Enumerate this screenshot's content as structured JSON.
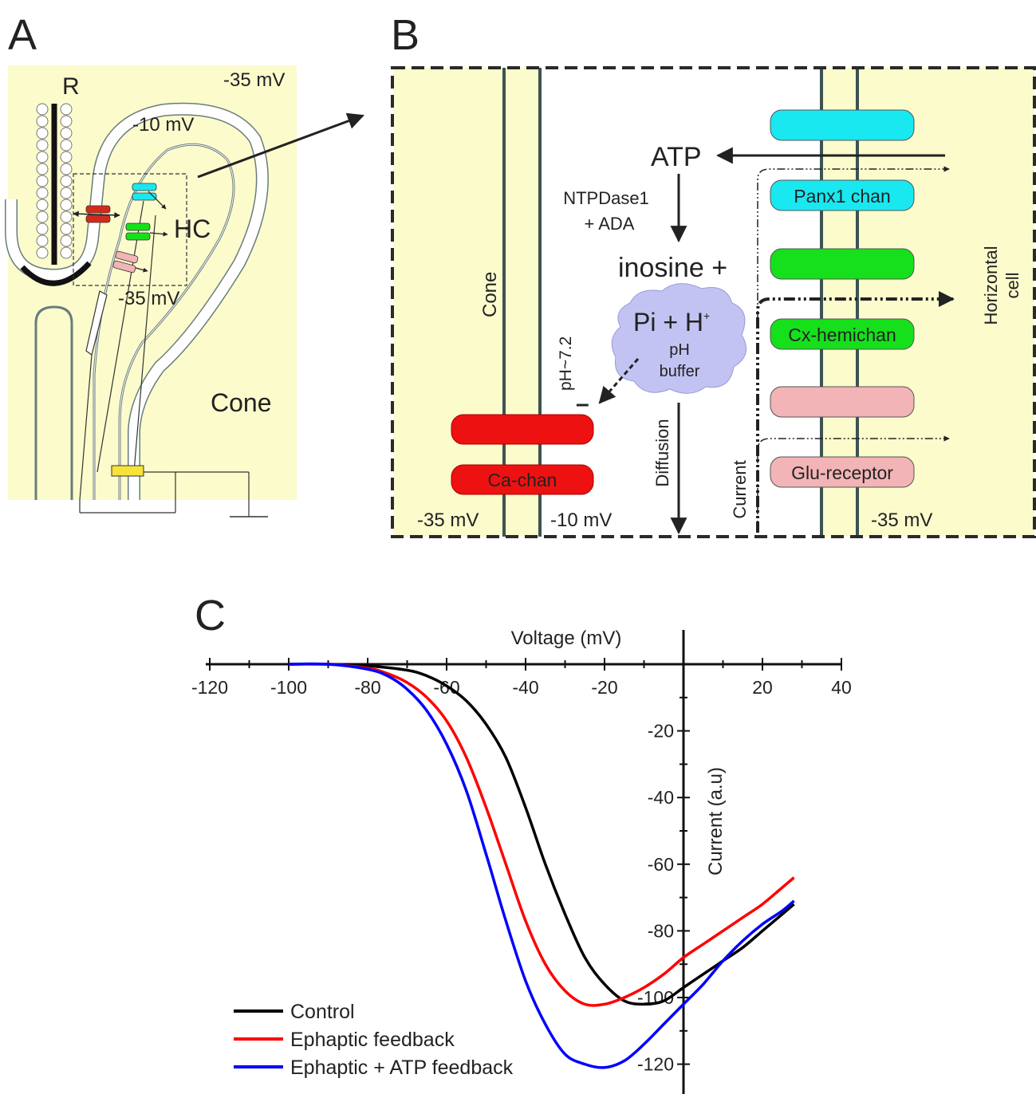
{
  "panels": {
    "a": "A",
    "b": "B",
    "c": "C"
  },
  "panel_a": {
    "rod_label": "R",
    "hc_label": "HC",
    "cone_label": "Cone",
    "v_cone": "-35 mV",
    "v_cleft": "-10 mV",
    "v_hc": "-35 mV"
  },
  "panel_b": {
    "cone_label": "Cone",
    "hc_label_line1": "Horizontal",
    "hc_label_line2": "cell",
    "atp": "ATP",
    "enzymes_line1": "NTPDase1",
    "enzymes_line2": "+ ADA",
    "inosine": "inosine +",
    "pi_h": "Pi + H",
    "pi_h_sup": "+",
    "buffer_line1": "pH",
    "buffer_line2": "buffer",
    "ph_label": "pH~7.2",
    "minus": "–",
    "diffusion": "Diffusion",
    "current": "Current",
    "ca_channel": "Ca-chan",
    "panx1": "Panx1 chan",
    "cx_hemichan": "Cx-hemichan",
    "glu_receptor": "Glu-receptor",
    "v_cone": "-35 mV",
    "v_cleft": "-10 mV",
    "v_hc": "-35 mV"
  },
  "colors": {
    "cell_fill": "#fbfbcc",
    "membrane": "#3d5252",
    "cyan": "#19e8f0",
    "green": "#16e01b",
    "pink": "#f2b4b6",
    "red": "#ee1111",
    "cloud": "#c3c3f3",
    "yellow": "#f7e23a",
    "control": "#000000",
    "ephaptic": "#ff0000",
    "ephaptic_atp": "#0000ff"
  },
  "chart_data": {
    "type": "line",
    "xlabel": "Voltage (mV)",
    "ylabel": "Current (a.u)",
    "xlim": [
      -120,
      40
    ],
    "ylim": [
      -125,
      0
    ],
    "x_ticks": [
      -120,
      -100,
      -80,
      -60,
      -40,
      -20,
      20,
      40
    ],
    "y_ticks": [
      -20,
      -40,
      -60,
      -80,
      -100,
      -120
    ],
    "series": [
      {
        "name": "Control",
        "color": "#000000",
        "x": [
          -100,
          -90,
          -80,
          -70,
          -65,
          -60,
          -55,
          -50,
          -45,
          -40,
          -35,
          -30,
          -25,
          -20,
          -15,
          -10,
          -5,
          0,
          5,
          10,
          15,
          20,
          25,
          28
        ],
        "y": [
          0,
          0,
          -0.5,
          -1.8,
          -3.5,
          -6.5,
          -11,
          -18,
          -28,
          -43,
          -60,
          -75,
          -88,
          -96,
          -101,
          -102,
          -101,
          -97,
          -93,
          -89,
          -85,
          -80,
          -75,
          -72
        ]
      },
      {
        "name": "Ephaptic feedback",
        "color": "#ff0000",
        "x": [
          -100,
          -90,
          -80,
          -75,
          -70,
          -65,
          -60,
          -55,
          -50,
          -45,
          -40,
          -35,
          -30,
          -25,
          -20,
          -15,
          -10,
          -5,
          0,
          5,
          10,
          15,
          20,
          25,
          28
        ],
        "y": [
          0,
          0,
          -1.2,
          -2.8,
          -5.5,
          -10,
          -17,
          -28,
          -43,
          -60,
          -77,
          -90,
          -98,
          -102,
          -102,
          -100,
          -97,
          -93,
          -88,
          -84,
          -80,
          -76,
          -72,
          -67,
          -64
        ]
      },
      {
        "name": "Ephaptic + ATP feedback",
        "color": "#0000ff",
        "x": [
          -100,
          -90,
          -80,
          -75,
          -70,
          -65,
          -60,
          -55,
          -50,
          -45,
          -40,
          -35,
          -30,
          -25,
          -20,
          -15,
          -10,
          -5,
          0,
          5,
          10,
          15,
          20,
          25,
          28
        ],
        "y": [
          0,
          0,
          -1.5,
          -3.5,
          -7.5,
          -14,
          -24,
          -38,
          -57,
          -77,
          -95,
          -108,
          -117,
          -120,
          -121,
          -119,
          -114,
          -108,
          -102,
          -96,
          -89,
          -83,
          -78,
          -74,
          -71
        ]
      }
    ],
    "legend_position": "bottom-left"
  }
}
